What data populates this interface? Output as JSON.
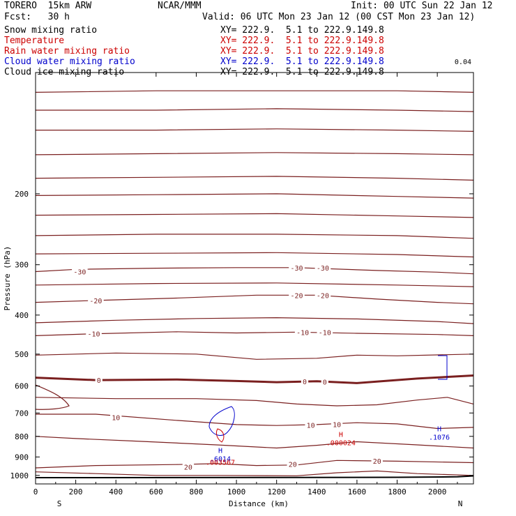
{
  "header": {
    "model": "TORERO  15km ARW",
    "org": "NCAR/MMM",
    "init": "Init: 00 UTC Sun 22 Jan 12",
    "fcst": "Fcst:   30 h",
    "valid": "Valid: 06 UTC Mon 23 Jan 12 (00 CST Mon 23 Jan 12)"
  },
  "fields": [
    {
      "name": "Snow mixing ratio",
      "xy": "XY= 222.9.  5.1 to 222.9.149.8",
      "color": "#000000"
    },
    {
      "name": "Temperature",
      "xy": "XY= 222.9.  5.1 to 222.9.149.8",
      "color": "#cc0000"
    },
    {
      "name": "Rain water mixing ratio",
      "xy": "XY= 222.9.  5.1 to 222.9.149.8",
      "color": "#cc0000"
    },
    {
      "name": "Cloud water mixing ratio",
      "xy": "XY= 222.9.  5.1 to 222.9.149.8",
      "color": "#0000cc"
    },
    {
      "name": "Cloud ice mixing ratio",
      "xy": "XY= 222.9.  5.1 to 222.9.149.8",
      "color": "#000000"
    }
  ],
  "corner_label": "0.04",
  "chart_data": {
    "type": "line",
    "subtype": "vertical cross-section contour",
    "xlabel": "Distance (km)",
    "ylabel": "Pressure (hPa)",
    "xlim": [
      0,
      2180
    ],
    "ylim": [
      1050,
      100
    ],
    "yscale": "log",
    "xticks": [
      0,
      200,
      400,
      600,
      800,
      1000,
      1200,
      1400,
      1600,
      1800,
      2000
    ],
    "yticks": [
      200,
      300,
      400,
      500,
      600,
      700,
      800,
      900,
      1000
    ],
    "x_endpoints": {
      "left": "S",
      "right": "N"
    },
    "colors": {
      "temperature": "#7a1f1f",
      "temperature_zero": "#7a1f1f",
      "rain": "#cc0000",
      "cloud_water": "#0000cc",
      "ground": "#000000"
    },
    "temperature_contours": [
      {
        "value": null,
        "x": [
          0,
          600,
          1200,
          1800,
          2180
        ],
        "y": [
          112,
          111,
          111,
          111,
          112
        ]
      },
      {
        "value": null,
        "x": [
          0,
          600,
          1200,
          1800,
          2180
        ],
        "y": [
          124,
          124,
          123,
          124,
          125
        ]
      },
      {
        "value": null,
        "x": [
          0,
          600,
          1200,
          1800,
          2180
        ],
        "y": [
          139,
          139,
          138,
          139,
          140
        ]
      },
      {
        "value": null,
        "x": [
          0,
          600,
          1200,
          1800,
          2180
        ],
        "y": [
          160,
          159,
          158,
          159,
          160
        ]
      },
      {
        "value": null,
        "x": [
          0,
          600,
          1200,
          1800,
          2180
        ],
        "y": [
          183,
          182,
          181,
          183,
          185
        ]
      },
      {
        "value": null,
        "x": [
          0,
          600,
          1200,
          1800,
          2180
        ],
        "y": [
          202,
          201,
          200,
          203,
          205
        ]
      },
      {
        "value": null,
        "x": [
          0,
          600,
          1200,
          1800,
          2180
        ],
        "y": [
          226,
          225,
          224,
          227,
          229
        ]
      },
      {
        "value": null,
        "x": [
          0,
          600,
          1200,
          1800,
          2180
        ],
        "y": [
          254,
          252,
          252,
          254,
          258
        ]
      },
      {
        "value": null,
        "x": [
          0,
          600,
          1200,
          1800,
          2180
        ],
        "y": [
          282,
          281,
          280,
          283,
          287
        ]
      },
      {
        "value": -30,
        "x": [
          0,
          200,
          600,
          1000,
          1300,
          1700,
          2000,
          2180
        ],
        "y": [
          312,
          308,
          306,
          305,
          305,
          310,
          313,
          316
        ]
      },
      {
        "value": null,
        "x": [
          0,
          600,
          1200,
          1800,
          2180
        ],
        "y": [
          337,
          334,
          333,
          337,
          340
        ]
      },
      {
        "value": -20,
        "x": [
          0,
          300,
          700,
          1100,
          1400,
          1700,
          2000,
          2180
        ],
        "y": [
          372,
          368,
          363,
          357,
          357,
          365,
          372,
          375
        ]
      },
      {
        "value": null,
        "x": [
          0,
          400,
          800,
          1200,
          1600,
          2000,
          2180
        ],
        "y": [
          418,
          412,
          408,
          406,
          409,
          415,
          420
        ]
      },
      {
        "value": -10,
        "x": [
          0,
          300,
          700,
          1000,
          1300,
          1600,
          2000,
          2180
        ],
        "y": [
          450,
          445,
          440,
          443,
          441,
          444,
          447,
          450
        ]
      },
      {
        "value": null,
        "x": [
          0,
          400,
          800,
          1100,
          1400,
          1600,
          1800,
          2180
        ],
        "y": [
          503,
          497,
          500,
          515,
          512,
          503,
          505,
          500
        ]
      },
      {
        "value": 0,
        "x": [
          0,
          300,
          700,
          1000,
          1200,
          1400,
          1600,
          1900,
          2180
        ],
        "y": [
          572,
          580,
          578,
          583,
          587,
          584,
          590,
          575,
          565
        ]
      },
      {
        "value": null,
        "x": [
          0,
          400,
          800,
          1100,
          1300,
          1500,
          1700,
          1900,
          2050,
          2180
        ],
        "y": [
          640,
          645,
          645,
          652,
          665,
          672,
          668,
          650,
          640,
          665
        ]
      },
      {
        "value": 10,
        "x": [
          0,
          300,
          700,
          1000,
          1200,
          1400,
          1600,
          1800,
          2000,
          2180
        ],
        "y": [
          705,
          705,
          730,
          748,
          752,
          748,
          740,
          745,
          765,
          760
        ]
      },
      {
        "value": null,
        "x": [
          0,
          200,
          500,
          900,
          1200,
          1400,
          1600,
          1900,
          2180
        ],
        "y": [
          800,
          810,
          822,
          840,
          855,
          842,
          825,
          840,
          855
        ]
      },
      {
        "value": 20,
        "x": [
          0,
          300,
          700,
          900,
          1100,
          1300,
          1500,
          1800,
          2180
        ],
        "y": [
          958,
          945,
          940,
          935,
          945,
          942,
          918,
          922,
          930
        ]
      },
      {
        "value": null,
        "x": [
          0,
          300,
          600,
          900,
          1300,
          1500,
          1700,
          1900,
          2180
        ],
        "y": [
          980,
          990,
          1000,
          1000,
          1002,
          985,
          975,
          990,
          1000
        ]
      }
    ],
    "contour_labels": [
      {
        "text": "-30",
        "x": 220,
        "y": 312,
        "color": "#7a1f1f"
      },
      {
        "text": "-30",
        "x": 1300,
        "y": 305,
        "color": "#7a1f1f"
      },
      {
        "text": "-30",
        "x": 1430,
        "y": 305,
        "color": "#7a1f1f"
      },
      {
        "text": "-20",
        "x": 300,
        "y": 368,
        "color": "#7a1f1f"
      },
      {
        "text": "-20",
        "x": 1300,
        "y": 357,
        "color": "#7a1f1f"
      },
      {
        "text": "-20",
        "x": 1430,
        "y": 357,
        "color": "#7a1f1f"
      },
      {
        "text": "-10",
        "x": 290,
        "y": 445,
        "color": "#7a1f1f"
      },
      {
        "text": "-10",
        "x": 1330,
        "y": 441,
        "color": "#7a1f1f"
      },
      {
        "text": "-10",
        "x": 1440,
        "y": 441,
        "color": "#7a1f1f"
      },
      {
        "text": "0",
        "x": 315,
        "y": 580,
        "color": "#7a1f1f"
      },
      {
        "text": "0",
        "x": 1340,
        "y": 584,
        "color": "#7a1f1f"
      },
      {
        "text": "0",
        "x": 1440,
        "y": 586,
        "color": "#7a1f1f"
      },
      {
        "text": "10",
        "x": 400,
        "y": 718,
        "color": "#7a1f1f"
      },
      {
        "text": "10",
        "x": 1370,
        "y": 750,
        "color": "#7a1f1f"
      },
      {
        "text": "10",
        "x": 1500,
        "y": 747,
        "color": "#7a1f1f"
      },
      {
        "text": "20",
        "x": 760,
        "y": 952,
        "color": "#7a1f1f"
      },
      {
        "text": "20",
        "x": 1280,
        "y": 938,
        "color": "#7a1f1f"
      },
      {
        "text": "20",
        "x": 1700,
        "y": 920,
        "color": "#7a1f1f"
      }
    ],
    "maxima": [
      {
        "label": "H",
        "value": ".000024",
        "x": 1520,
        "y": 815,
        "color": "#cc0000"
      },
      {
        "label": "H",
        "value": ".1076",
        "x": 2010,
        "y": 790,
        "color": "#0000cc"
      },
      {
        "label": "H",
        "value": ".6014",
        "x": 920,
        "y": 893,
        "color": "#0000cc"
      },
      {
        "label": "",
        "value": ".003567",
        "x": 920,
        "y": 912,
        "color": "#cc0000"
      }
    ],
    "ground_surface": {
      "x": [
        0,
        1200,
        1800,
        2100,
        2180
      ],
      "y": [
        1013,
        1012,
        1011,
        1008,
        1003
      ]
    }
  }
}
